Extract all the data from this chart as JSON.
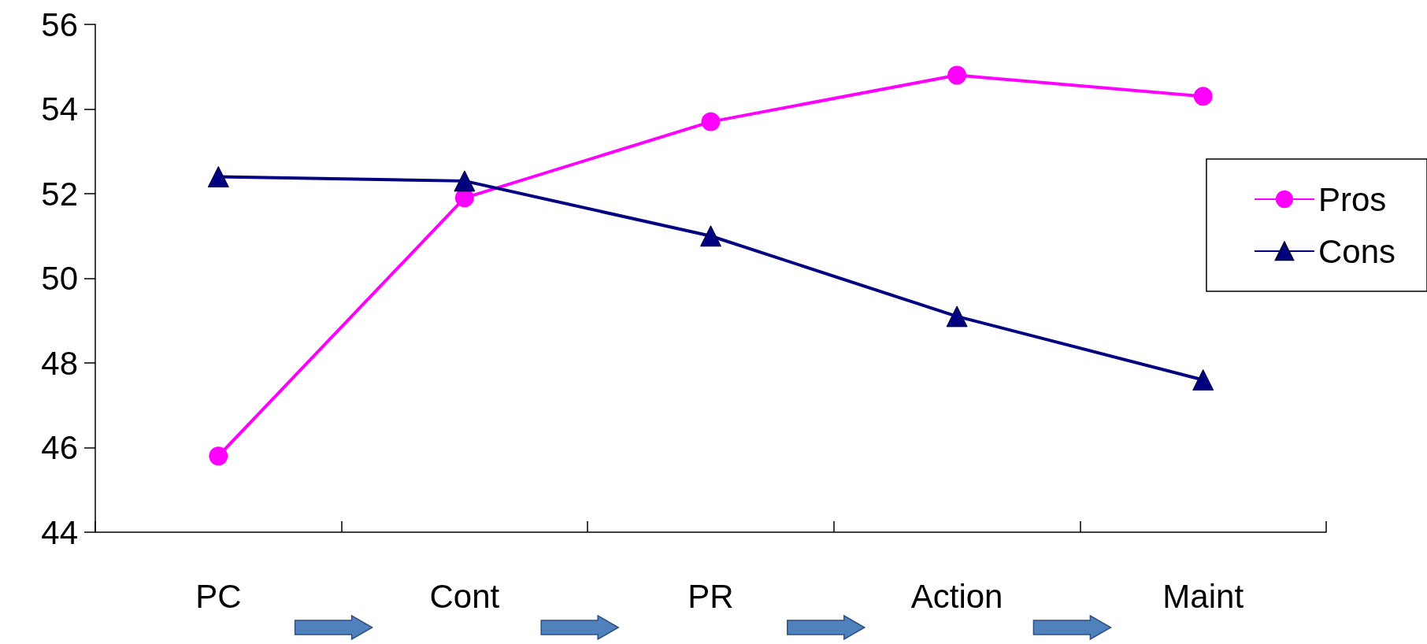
{
  "chart_data": {
    "type": "line",
    "categories": [
      "PC",
      "Cont",
      "PR",
      "Action",
      "Maint"
    ],
    "series": [
      {
        "name": "Pros",
        "color": "#ff00ff",
        "marker": "circle",
        "values": [
          45.8,
          51.9,
          53.7,
          54.8,
          54.3
        ]
      },
      {
        "name": "Cons",
        "color": "#000080",
        "marker": "triangle",
        "values": [
          52.4,
          52.3,
          51.0,
          49.1,
          47.6
        ]
      }
    ],
    "ylim": [
      44,
      56
    ],
    "yticks": [
      44,
      46,
      48,
      50,
      52,
      54,
      56
    ],
    "grid": false,
    "legend": "right"
  }
}
